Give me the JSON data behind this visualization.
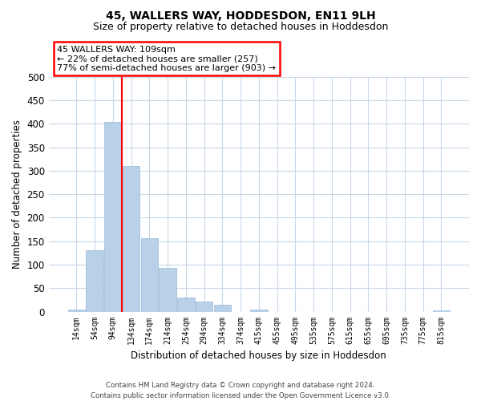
{
  "title": "45, WALLERS WAY, HODDESDON, EN11 9LH",
  "subtitle": "Size of property relative to detached houses in Hoddesdon",
  "xlabel": "Distribution of detached houses by size in Hoddesdon",
  "ylabel": "Number of detached properties",
  "bar_labels": [
    "14sqm",
    "54sqm",
    "94sqm",
    "134sqm",
    "174sqm",
    "214sqm",
    "254sqm",
    "294sqm",
    "334sqm",
    "374sqm",
    "415sqm",
    "455sqm",
    "495sqm",
    "535sqm",
    "575sqm",
    "615sqm",
    "655sqm",
    "695sqm",
    "735sqm",
    "775sqm",
    "815sqm"
  ],
  "bar_values": [
    5,
    130,
    405,
    310,
    157,
    93,
    30,
    22,
    14,
    0,
    5,
    0,
    0,
    0,
    0,
    0,
    0,
    0,
    0,
    0,
    2
  ],
  "bar_color": "#b8d0e8",
  "bar_edge_color": "#9ab8d8",
  "vline_color": "#ff0000",
  "vline_x_index": 2.5,
  "ylim": [
    0,
    500
  ],
  "yticks": [
    0,
    50,
    100,
    150,
    200,
    250,
    300,
    350,
    400,
    450,
    500
  ],
  "annotation_line1": "45 WALLERS WAY: 109sqm",
  "annotation_line2": "← 22% of detached houses are smaller (257)",
  "annotation_line3": "77% of semi-detached houses are larger (903) →",
  "footer_line1": "Contains HM Land Registry data © Crown copyright and database right 2024.",
  "footer_line2": "Contains public sector information licensed under the Open Government Licence v3.0.",
  "background_color": "#ffffff",
  "grid_color": "#c8d8e8",
  "title_fontsize": 10,
  "subtitle_fontsize": 9
}
